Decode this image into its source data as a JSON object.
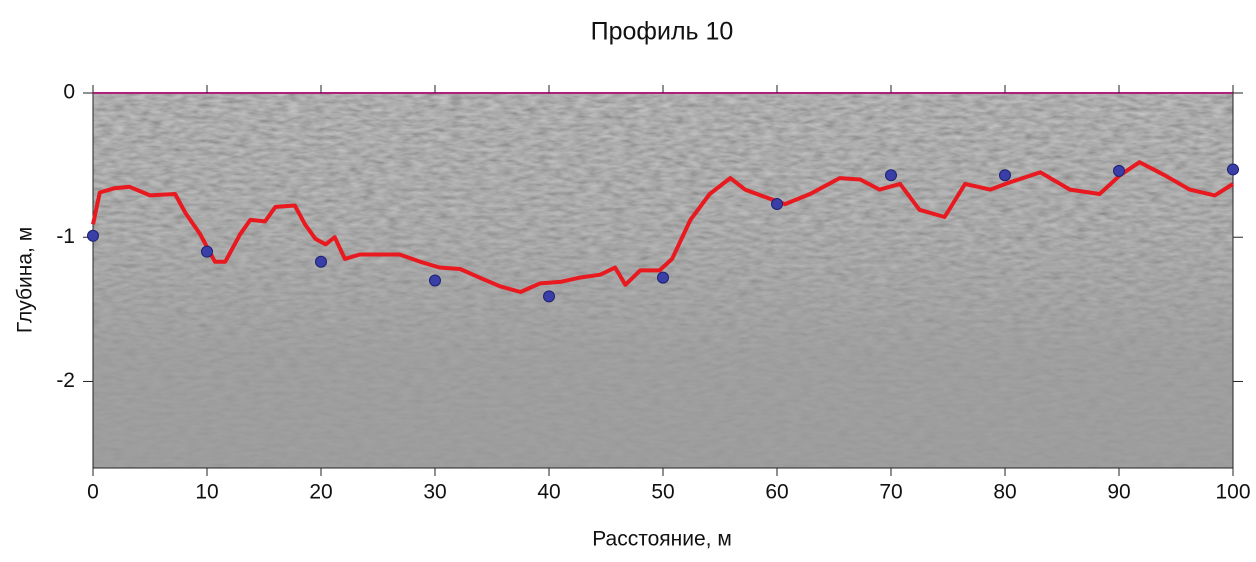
{
  "chart_data": {
    "type": "line",
    "title": "Профиль 10",
    "x_label": "Расстояние, м",
    "y_label": "Глубина, м",
    "xlim": [
      0,
      100
    ],
    "xticks": [
      0,
      10,
      20,
      30,
      40,
      50,
      60,
      70,
      80,
      90,
      100
    ],
    "ylim": [
      -2.6,
      0
    ],
    "yticks": [
      0,
      -1,
      -2
    ],
    "series": [
      {
        "type": "line",
        "color": "#e8191f",
        "x": [
          0,
          0.6,
          1.9,
          3.2,
          5,
          7.2,
          8.1,
          9.4,
          10.7,
          11.6,
          12.9,
          13.8,
          15.1,
          16,
          17.7,
          18.6,
          19.5,
          20.4,
          21.2,
          22.1,
          23.4,
          25.2,
          26.9,
          28.7,
          30.4,
          32.2,
          33.9,
          35.7,
          37.5,
          39.2,
          41,
          42.7,
          44.5,
          45.8,
          46.7,
          48,
          49.7,
          50.8,
          52.4,
          54.1,
          55.9,
          57.2,
          58.9,
          60.7,
          62.9,
          65.5,
          67.3,
          69,
          70.8,
          72.5,
          74.7,
          76.5,
          78.7,
          80.4,
          83.1,
          85.7,
          88.3,
          90.1,
          91.8,
          94,
          96.2,
          98.4,
          100
        ],
        "values": [
          -0.91,
          -0.69,
          -0.66,
          -0.65,
          -0.71,
          -0.7,
          -0.83,
          -0.98,
          -1.17,
          -1.17,
          -0.98,
          -0.88,
          -0.89,
          -0.79,
          -0.78,
          -0.91,
          -1.01,
          -1.05,
          -1.0,
          -1.15,
          -1.12,
          -1.12,
          -1.12,
          -1.17,
          -1.21,
          -1.22,
          -1.28,
          -1.34,
          -1.38,
          -1.32,
          -1.31,
          -1.28,
          -1.26,
          -1.21,
          -1.33,
          -1.23,
          -1.23,
          -1.15,
          -0.88,
          -0.7,
          -0.59,
          -0.67,
          -0.72,
          -0.77,
          -0.7,
          -0.59,
          -0.6,
          -0.67,
          -0.63,
          -0.81,
          -0.86,
          -0.63,
          -0.67,
          -0.62,
          -0.55,
          -0.67,
          -0.7,
          -0.57,
          -0.48,
          -0.57,
          -0.67,
          -0.71,
          -0.63
        ]
      },
      {
        "type": "scatter",
        "color": "#3a3fa8",
        "x": [
          0,
          10,
          20,
          30,
          40,
          50,
          60,
          70,
          80,
          90,
          100
        ],
        "values": [
          -0.99,
          -1.1,
          -1.17,
          -1.3,
          -1.41,
          -1.28,
          -0.77,
          -0.57,
          -0.57,
          -0.54,
          -0.53
        ]
      }
    ]
  }
}
